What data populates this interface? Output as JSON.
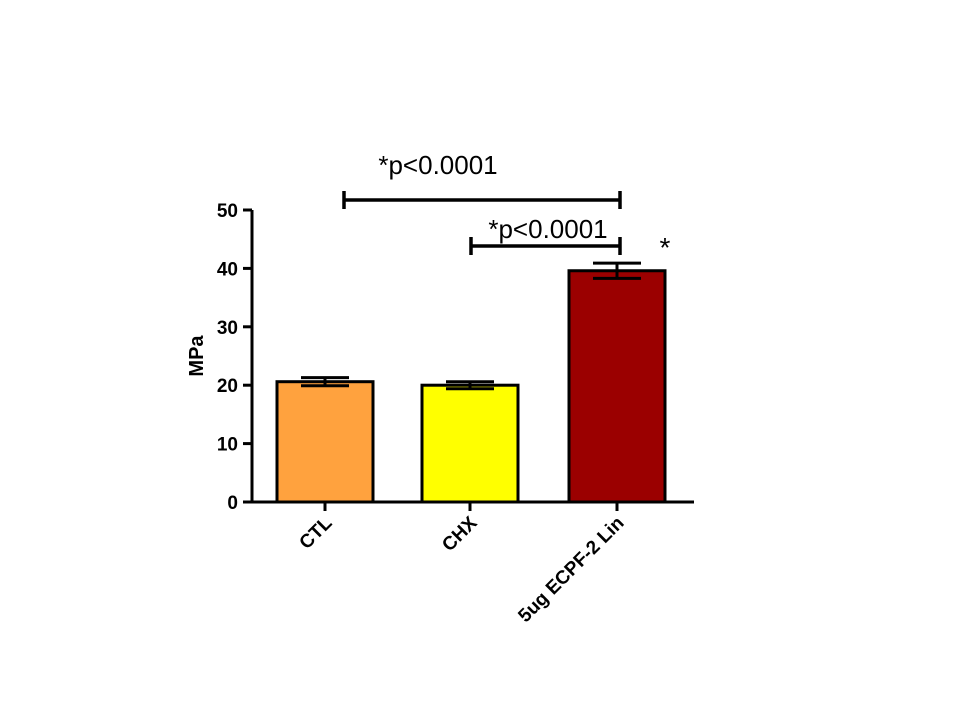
{
  "chart_data": {
    "type": "bar",
    "title": "",
    "xlabel": "",
    "ylabel": "MPa",
    "ylim": [
      0,
      50
    ],
    "yticks": [
      0,
      10,
      20,
      30,
      40,
      50
    ],
    "grid": false,
    "categories": [
      "CTL",
      "CHX",
      "5ug ECPF-2 Lin"
    ],
    "values": [
      20.6,
      20.0,
      39.6
    ],
    "errors": [
      0.7,
      0.6,
      1.3
    ],
    "colors": [
      "#ffa23e",
      "#ffff00",
      "#9b0000"
    ],
    "significance": [
      {
        "from": 0,
        "to": 2,
        "label": "*p<0.0001"
      },
      {
        "from": 1,
        "to": 2,
        "label": "*p<0.0001"
      }
    ],
    "bar_annotations": [
      {
        "index": 2,
        "label": "*"
      }
    ]
  }
}
